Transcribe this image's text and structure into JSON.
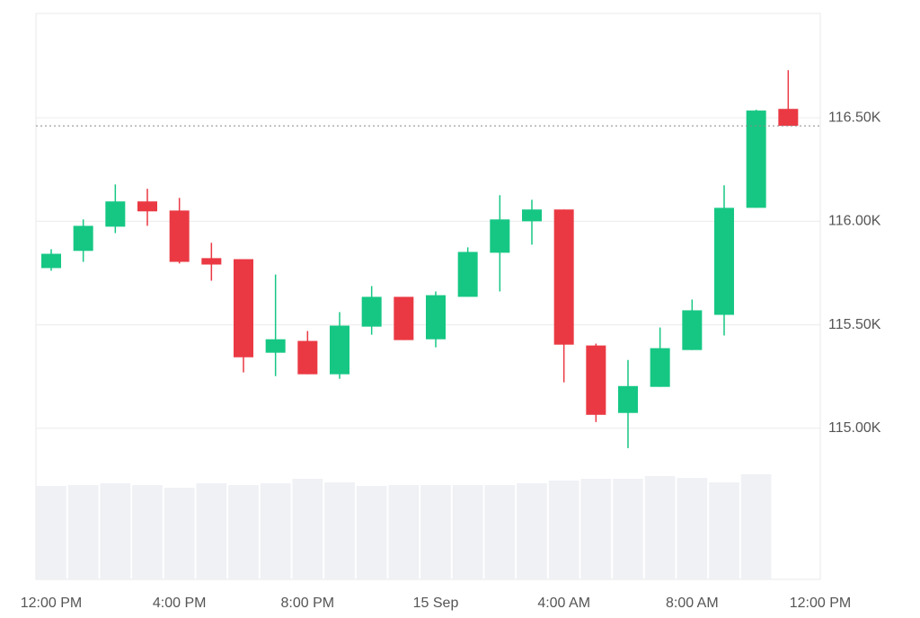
{
  "chart_data": {
    "type": "candlestick",
    "categories": [
      "12:00 PM",
      null,
      null,
      null,
      "4:00 PM",
      null,
      null,
      null,
      "8:00 PM",
      null,
      null,
      null,
      "15 Sep",
      null,
      null,
      null,
      "4:00 AM",
      null,
      null,
      null,
      "8:00 AM",
      null,
      null,
      null,
      "12:00 PM"
    ],
    "open": [
      115774,
      115857,
      115974,
      116096,
      116052,
      115822,
      115817,
      115365,
      115422,
      115261,
      115491,
      115635,
      115430,
      115635,
      115848,
      116000,
      116057,
      115400,
      115074,
      115200,
      115378,
      115548,
      116065,
      116543,
      null
    ],
    "high": [
      115865,
      116009,
      116178,
      116157,
      116113,
      115896,
      115817,
      115743,
      115470,
      115561,
      115687,
      115635,
      115661,
      115874,
      116126,
      116104,
      116057,
      115409,
      115330,
      115487,
      115622,
      116174,
      116539,
      116730,
      null
    ],
    "low": [
      115761,
      115804,
      115943,
      115978,
      115796,
      115713,
      115270,
      115252,
      115261,
      115239,
      115452,
      115426,
      115391,
      115635,
      115661,
      115887,
      115222,
      115030,
      114904,
      115200,
      115378,
      115448,
      116065,
      116461,
      null
    ],
    "close": [
      115843,
      115978,
      116096,
      116048,
      115804,
      115791,
      115343,
      115430,
      115261,
      115496,
      115635,
      115426,
      115643,
      115852,
      116009,
      116057,
      115404,
      115065,
      115204,
      115387,
      115570,
      116065,
      116535,
      116461,
      null
    ],
    "volume": [
      104,
      105,
      107,
      105,
      102,
      107,
      105,
      107,
      112,
      108,
      104,
      105,
      105,
      105,
      105,
      107,
      110,
      112,
      112,
      115,
      113,
      108,
      117,
      null,
      null
    ],
    "up_color": "#16c784",
    "down_color": "#ea3943",
    "volume_color": "#eff1f4",
    "ylim": [
      114270,
      117004
    ],
    "yticks": [
      {
        "value": 115000,
        "label": "115.00K"
      },
      {
        "value": 115500,
        "label": "115.50K"
      },
      {
        "value": 116000,
        "label": "116.00K"
      },
      {
        "value": 116500,
        "label": "116.50K"
      }
    ],
    "grid": true
  }
}
